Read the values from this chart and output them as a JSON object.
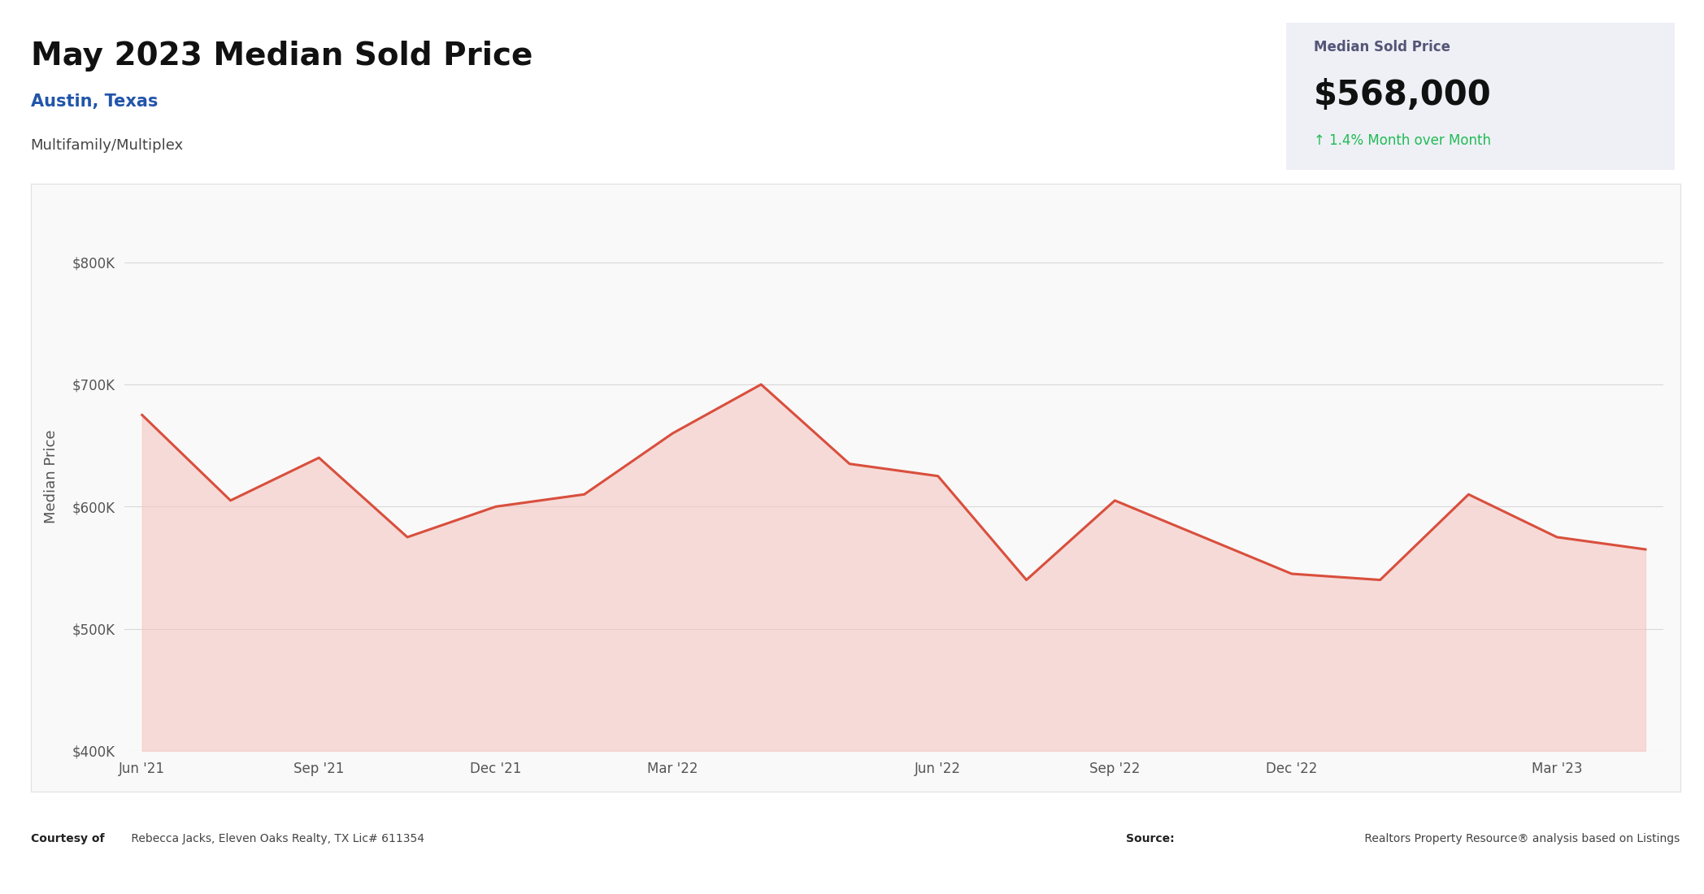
{
  "title": "May 2023 Median Sold Price",
  "subtitle": "Austin, Texas",
  "subtitle2": "Multifamily/Multiplex",
  "card_title": "Median Sold Price",
  "card_value": "$568,000",
  "card_change": "↑ 1.4% Month over Month",
  "ylabel": "Median Price",
  "footer_left_bold": "Courtesy of",
  "footer_left_normal": " Rebecca Jacks, Eleven Oaks Realty, TX Lic# 611354",
  "footer_right_bold": "Source:",
  "footer_right_normal": " Realtors Property Resource® analysis based on Listings",
  "x_labels": [
    "Jun '21",
    "Sep '21",
    "Dec '21",
    "Mar '22",
    "Jun '22",
    "Sep '22",
    "Dec '22",
    "Mar '23"
  ],
  "x_tick_indices": [
    0,
    2,
    4,
    6,
    9,
    11,
    13,
    16
  ],
  "y_values": [
    675000,
    605000,
    640000,
    575000,
    600000,
    610000,
    660000,
    700000,
    635000,
    625000,
    540000,
    605000,
    575000,
    545000,
    540000,
    610000,
    575000,
    565000
  ],
  "line_color": "#d94f3d",
  "fill_color": "#f5c2bb",
  "background_color": "#ffffff",
  "chart_bg_color": "#ffffff",
  "chart_border_color": "#e0e0e0",
  "grid_color": "#d8d8d8",
  "card_bg_color": "#eef0f6",
  "ylim_min": 400000,
  "ylim_max": 850000,
  "y_ticks": [
    400000,
    500000,
    600000,
    700000,
    800000
  ]
}
